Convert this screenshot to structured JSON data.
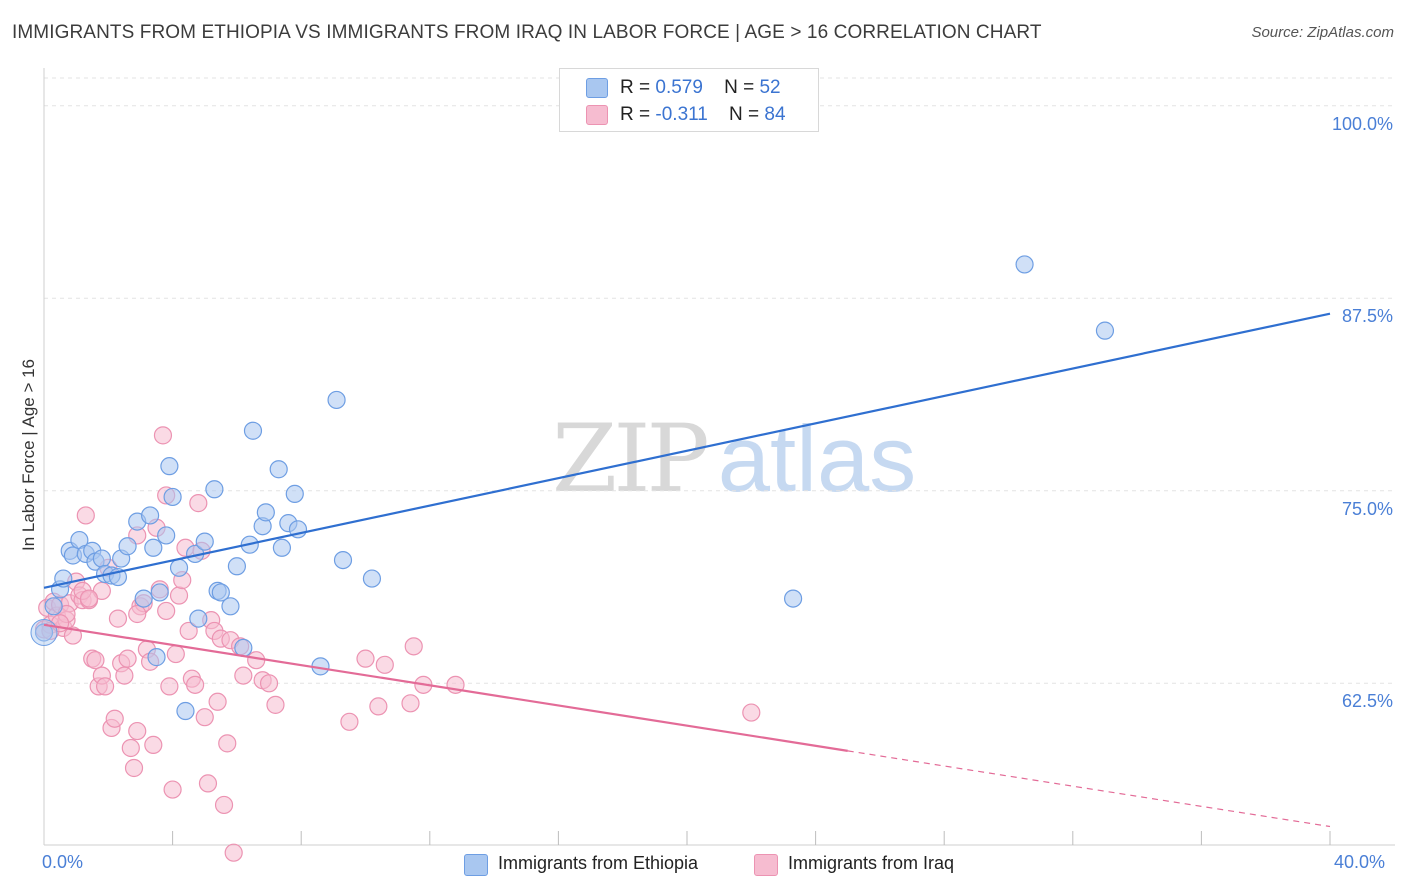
{
  "chart_data": {
    "type": "scatter",
    "title": "IMMIGRANTS FROM ETHIOPIA VS IMMIGRANTS FROM IRAQ IN LABOR FORCE | AGE > 16 CORRELATION CHART",
    "source": "Source: ZipAtlas.com",
    "xlabel": "",
    "ylabel": "In Labor Force | Age > 16",
    "xlim": [
      0,
      40
    ],
    "ylim": [
      52,
      102
    ],
    "y_ticks": [
      {
        "value": 100,
        "label": "100.0%"
      },
      {
        "value": 87.5,
        "label": "87.5%"
      },
      {
        "value": 75,
        "label": "75.0%"
      },
      {
        "value": 62.5,
        "label": "62.5%"
      }
    ],
    "x_tick_labels": {
      "min": "0.0%",
      "max": "40.0%"
    },
    "x_minor_ticks": [
      4,
      8,
      12,
      16,
      20,
      24,
      28,
      32,
      36,
      40
    ],
    "grid": true,
    "watermark": {
      "part1": "ZIP",
      "part2": "atlas"
    },
    "legend": {
      "r_label": "R =",
      "n_label": "N =",
      "entries": [
        {
          "series": "Immigrants from Ethiopia",
          "r": "0.579",
          "n": "52"
        },
        {
          "series": "Immigrants from Iraq",
          "r": "-0.311",
          "n": "84"
        }
      ]
    },
    "colors": {
      "ethiopia_fill": "#a9c7f0",
      "ethiopia_stroke": "#6e9ee3",
      "ethiopia_line": "#2f6fd0",
      "iraq_fill": "#f6bcd0",
      "iraq_stroke": "#ec93b2",
      "iraq_line": "#e36b97",
      "tick_label": "#4a7fd6",
      "grid": "#e3e3e3"
    },
    "series": [
      {
        "name": "Immigrants from Ethiopia",
        "trend": {
          "x0": 0,
          "y0": 68.7,
          "x1": 40,
          "y1": 86.5,
          "solid_until": 40
        },
        "points": [
          [
            0.0,
            65.8
          ],
          [
            0.3,
            67.5
          ],
          [
            0.5,
            68.6
          ],
          [
            0.6,
            69.3
          ],
          [
            0.8,
            71.1
          ],
          [
            0.9,
            70.8
          ],
          [
            1.1,
            71.8
          ],
          [
            1.3,
            70.9
          ],
          [
            1.5,
            71.1
          ],
          [
            1.6,
            70.4
          ],
          [
            1.8,
            70.6
          ],
          [
            1.9,
            69.6
          ],
          [
            2.1,
            69.5
          ],
          [
            2.3,
            69.4
          ],
          [
            2.4,
            70.6
          ],
          [
            2.6,
            71.4
          ],
          [
            2.9,
            73.0
          ],
          [
            3.1,
            68.0
          ],
          [
            3.3,
            73.4
          ],
          [
            3.4,
            71.3
          ],
          [
            3.5,
            64.2
          ],
          [
            3.6,
            68.4
          ],
          [
            3.8,
            72.1
          ],
          [
            3.9,
            76.6
          ],
          [
            4.0,
            74.6
          ],
          [
            4.2,
            70.0
          ],
          [
            4.4,
            60.7
          ],
          [
            4.7,
            70.9
          ],
          [
            4.8,
            66.7
          ],
          [
            5.0,
            71.7
          ],
          [
            5.3,
            75.1
          ],
          [
            5.4,
            68.5
          ],
          [
            5.5,
            68.4
          ],
          [
            5.8,
            67.5
          ],
          [
            6.0,
            70.1
          ],
          [
            6.2,
            64.8
          ],
          [
            6.4,
            71.5
          ],
          [
            6.5,
            78.9
          ],
          [
            6.8,
            72.7
          ],
          [
            6.9,
            73.6
          ],
          [
            7.3,
            76.4
          ],
          [
            7.4,
            71.3
          ],
          [
            7.6,
            72.9
          ],
          [
            7.8,
            74.8
          ],
          [
            7.9,
            72.5
          ],
          [
            8.6,
            63.6
          ],
          [
            9.1,
            80.9
          ],
          [
            9.3,
            70.5
          ],
          [
            10.2,
            69.3
          ],
          [
            23.3,
            68.0
          ],
          [
            30.5,
            89.7
          ],
          [
            33.0,
            85.4
          ]
        ]
      },
      {
        "name": "Immigrants from Iraq",
        "trend": {
          "x0": 0,
          "y0": 66.3,
          "x1": 40,
          "y1": 53.2,
          "solid_until": 25
        },
        "points": [
          [
            0.0,
            66.0
          ],
          [
            0.1,
            67.4
          ],
          [
            0.2,
            66.3
          ],
          [
            0.3,
            67.8
          ],
          [
            0.4,
            66.9
          ],
          [
            0.5,
            67.6
          ],
          [
            0.6,
            66.1
          ],
          [
            0.7,
            66.6
          ],
          [
            0.8,
            67.7
          ],
          [
            0.9,
            65.6
          ],
          [
            1.0,
            69.1
          ],
          [
            1.1,
            68.2
          ],
          [
            1.2,
            67.9
          ],
          [
            1.3,
            73.4
          ],
          [
            1.4,
            67.9
          ],
          [
            1.5,
            64.1
          ],
          [
            1.6,
            64.0
          ],
          [
            1.7,
            62.3
          ],
          [
            1.8,
            63.0
          ],
          [
            1.9,
            62.3
          ],
          [
            1.8,
            68.5
          ],
          [
            2.0,
            70.0
          ],
          [
            2.1,
            59.6
          ],
          [
            2.2,
            60.2
          ],
          [
            2.3,
            66.7
          ],
          [
            2.4,
            63.8
          ],
          [
            2.5,
            63.0
          ],
          [
            2.6,
            64.1
          ],
          [
            2.7,
            58.3
          ],
          [
            2.8,
            57.0
          ],
          [
            2.9,
            59.4
          ],
          [
            2.9,
            72.1
          ],
          [
            3.0,
            67.5
          ],
          [
            3.1,
            67.7
          ],
          [
            3.2,
            64.7
          ],
          [
            3.3,
            63.9
          ],
          [
            3.4,
            58.5
          ],
          [
            3.5,
            72.6
          ],
          [
            3.6,
            68.6
          ],
          [
            3.7,
            78.6
          ],
          [
            3.8,
            74.7
          ],
          [
            3.9,
            62.3
          ],
          [
            4.0,
            55.6
          ],
          [
            4.1,
            64.4
          ],
          [
            4.2,
            68.2
          ],
          [
            4.3,
            69.2
          ],
          [
            4.4,
            71.3
          ],
          [
            4.5,
            65.9
          ],
          [
            4.6,
            62.8
          ],
          [
            4.7,
            62.4
          ],
          [
            4.8,
            74.2
          ],
          [
            4.9,
            71.1
          ],
          [
            5.0,
            60.3
          ],
          [
            5.1,
            56.0
          ],
          [
            5.2,
            66.6
          ],
          [
            5.3,
            65.9
          ],
          [
            5.4,
            61.3
          ],
          [
            5.5,
            65.4
          ],
          [
            5.6,
            54.6
          ],
          [
            5.7,
            58.6
          ],
          [
            5.8,
            65.3
          ],
          [
            5.9,
            51.5
          ],
          [
            6.1,
            64.9
          ],
          [
            6.2,
            63.0
          ],
          [
            6.6,
            64.0
          ],
          [
            6.8,
            62.7
          ],
          [
            7.0,
            62.5
          ],
          [
            7.2,
            61.1
          ],
          [
            9.5,
            60.0
          ],
          [
            10.0,
            64.1
          ],
          [
            10.4,
            61.0
          ],
          [
            10.6,
            63.7
          ],
          [
            11.4,
            61.2
          ],
          [
            11.5,
            64.9
          ],
          [
            11.8,
            62.4
          ],
          [
            12.8,
            62.4
          ],
          [
            22.0,
            60.6
          ],
          [
            1.2,
            68.5
          ],
          [
            0.7,
            67.0
          ],
          [
            0.2,
            65.9
          ],
          [
            1.4,
            68.0
          ],
          [
            0.5,
            66.4
          ],
          [
            2.9,
            67.0
          ],
          [
            3.8,
            67.2
          ]
        ]
      }
    ]
  }
}
